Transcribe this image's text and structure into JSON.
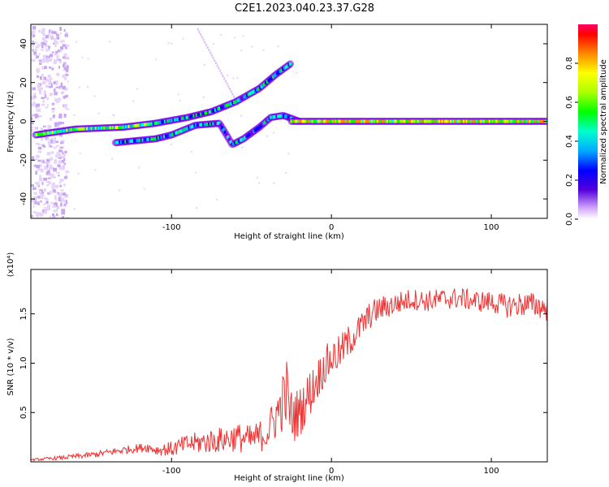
{
  "title": "C2E1.2023.040.23.37.G28",
  "chart_data": [
    {
      "type": "heatmap",
      "xlabel": "Height of straight line (km)",
      "ylabel": "Frequency (Hz)",
      "xlim": [
        -188,
        135
      ],
      "ylim": [
        -50,
        50
      ],
      "xticks": [
        -100,
        0,
        100
      ],
      "yticks": [
        -40,
        -20,
        0,
        20,
        40
      ],
      "colorbar": {
        "label": "Normalized spectral amplitude",
        "range": [
          0,
          1
        ],
        "ticks": [
          "0.0",
          "0.2",
          "0.4",
          "0.6",
          "0.8"
        ]
      },
      "traces": [
        {
          "name": "upper-branch",
          "points": [
            [
              -185,
              -7
            ],
            [
              -160,
              -4
            ],
            [
              -130,
              -3
            ],
            [
              -110,
              -1
            ],
            [
              -90,
              2
            ],
            [
              -75,
              5
            ],
            [
              -60,
              10
            ],
            [
              -45,
              17
            ],
            [
              -35,
              24
            ],
            [
              -25,
              30
            ]
          ]
        },
        {
          "name": "lower-branch",
          "points": [
            [
              -135,
              -11
            ],
            [
              -110,
              -9
            ],
            [
              -100,
              -7
            ],
            [
              -85,
              -2
            ],
            [
              -70,
              -1
            ],
            [
              -62,
              -12
            ],
            [
              -55,
              -9
            ],
            [
              -45,
              -3
            ],
            [
              -38,
              2
            ],
            [
              -30,
              3
            ],
            [
              -20,
              0
            ]
          ]
        },
        {
          "name": "zero-line",
          "points": [
            [
              -25,
              0
            ],
            [
              0,
              0
            ],
            [
              50,
              0
            ],
            [
              100,
              0
            ],
            [
              135,
              0
            ]
          ]
        }
      ]
    },
    {
      "type": "line",
      "xlabel": "Height of straight line (km)",
      "ylabel": "SNR (10 * v/v)",
      "scale_label": "(x10⁴)",
      "xlim": [
        -188,
        135
      ],
      "ylim": [
        0,
        1.95
      ],
      "xticks": [
        -100,
        0,
        100
      ],
      "yticks": [
        "0.5",
        "1.0",
        "1.5"
      ],
      "series": [
        {
          "name": "SNR",
          "color": "#ee3333",
          "x": [
            -188,
            -170,
            -150,
            -130,
            -115,
            -110,
            -100,
            -90,
            -80,
            -70,
            -60,
            -50,
            -40,
            -32,
            -28,
            -25,
            -20,
            -15,
            -10,
            -5,
            0,
            5,
            10,
            15,
            20,
            25,
            30,
            40,
            50,
            60,
            70,
            80,
            90,
            100,
            110,
            120,
            130,
            135
          ],
          "y": [
            0.02,
            0.04,
            0.07,
            0.12,
            0.15,
            0.12,
            0.13,
            0.18,
            0.2,
            0.22,
            0.25,
            0.22,
            0.3,
            0.55,
            0.7,
            0.45,
            0.5,
            0.65,
            0.8,
            0.95,
            1.05,
            1.1,
            1.2,
            1.3,
            1.4,
            1.5,
            1.55,
            1.6,
            1.65,
            1.63,
            1.65,
            1.66,
            1.63,
            1.62,
            1.58,
            1.6,
            1.58,
            1.55
          ],
          "noise": [
            0.01,
            0.02,
            0.03,
            0.04,
            0.05,
            0.05,
            0.08,
            0.1,
            0.12,
            0.13,
            0.15,
            0.15,
            0.18,
            0.28,
            0.35,
            0.3,
            0.25,
            0.25,
            0.22,
            0.2,
            0.2,
            0.18,
            0.18,
            0.15,
            0.15,
            0.14,
            0.13,
            0.12,
            0.11,
            0.11,
            0.11,
            0.11,
            0.11,
            0.11,
            0.12,
            0.13,
            0.13,
            0.13
          ]
        }
      ]
    }
  ]
}
